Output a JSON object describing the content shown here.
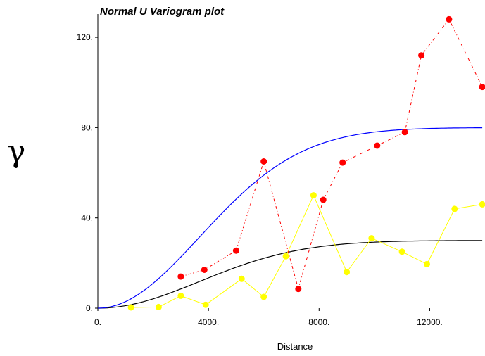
{
  "chart_data": {
    "type": "scatter",
    "title": "Normal U Variogram plot",
    "xlabel": "Distance",
    "ylabel": "γ",
    "xlim": [
      0,
      14000
    ],
    "ylim": [
      0,
      130
    ],
    "x_ticks": [
      {
        "value": 0,
        "label": "0."
      },
      {
        "value": 4000,
        "label": "4000."
      },
      {
        "value": 8000,
        "label": "8000."
      },
      {
        "value": 12000,
        "label": "12000."
      }
    ],
    "y_ticks": [
      {
        "value": 0,
        "label": "0."
      },
      {
        "value": 40,
        "label": "40."
      },
      {
        "value": 80,
        "label": "80."
      },
      {
        "value": 120,
        "label": "120."
      }
    ],
    "grid": false,
    "series": [
      {
        "style": "points-dashed",
        "color": "#ff0000",
        "x": [
          3000,
          3850,
          5000,
          6000,
          7250,
          8150,
          8850,
          10100,
          11100,
          11700,
          12700,
          13900
        ],
        "y": [
          14,
          17,
          25.5,
          65,
          8.5,
          48,
          64.5,
          72,
          78,
          112,
          128,
          98
        ]
      },
      {
        "style": "points-line",
        "color": "#ffff00",
        "x": [
          1200,
          2200,
          3000,
          3900,
          5200,
          6000,
          6800,
          7800,
          9000,
          9900,
          11000,
          11900,
          12900,
          13900
        ],
        "y": [
          0.3,
          0.5,
          5.5,
          1.5,
          13,
          5,
          23,
          50,
          16,
          31,
          25,
          19.5,
          44,
          46
        ]
      },
      {
        "style": "curve",
        "color": "#0000ff",
        "model": "gaussian",
        "nugget": 0,
        "sill": 80,
        "range": 9000,
        "xmax": 13900
      },
      {
        "style": "curve",
        "color": "#000000",
        "model": "gaussian",
        "nugget": 0,
        "sill": 30,
        "range": 9000,
        "xmax": 13900
      }
    ]
  }
}
